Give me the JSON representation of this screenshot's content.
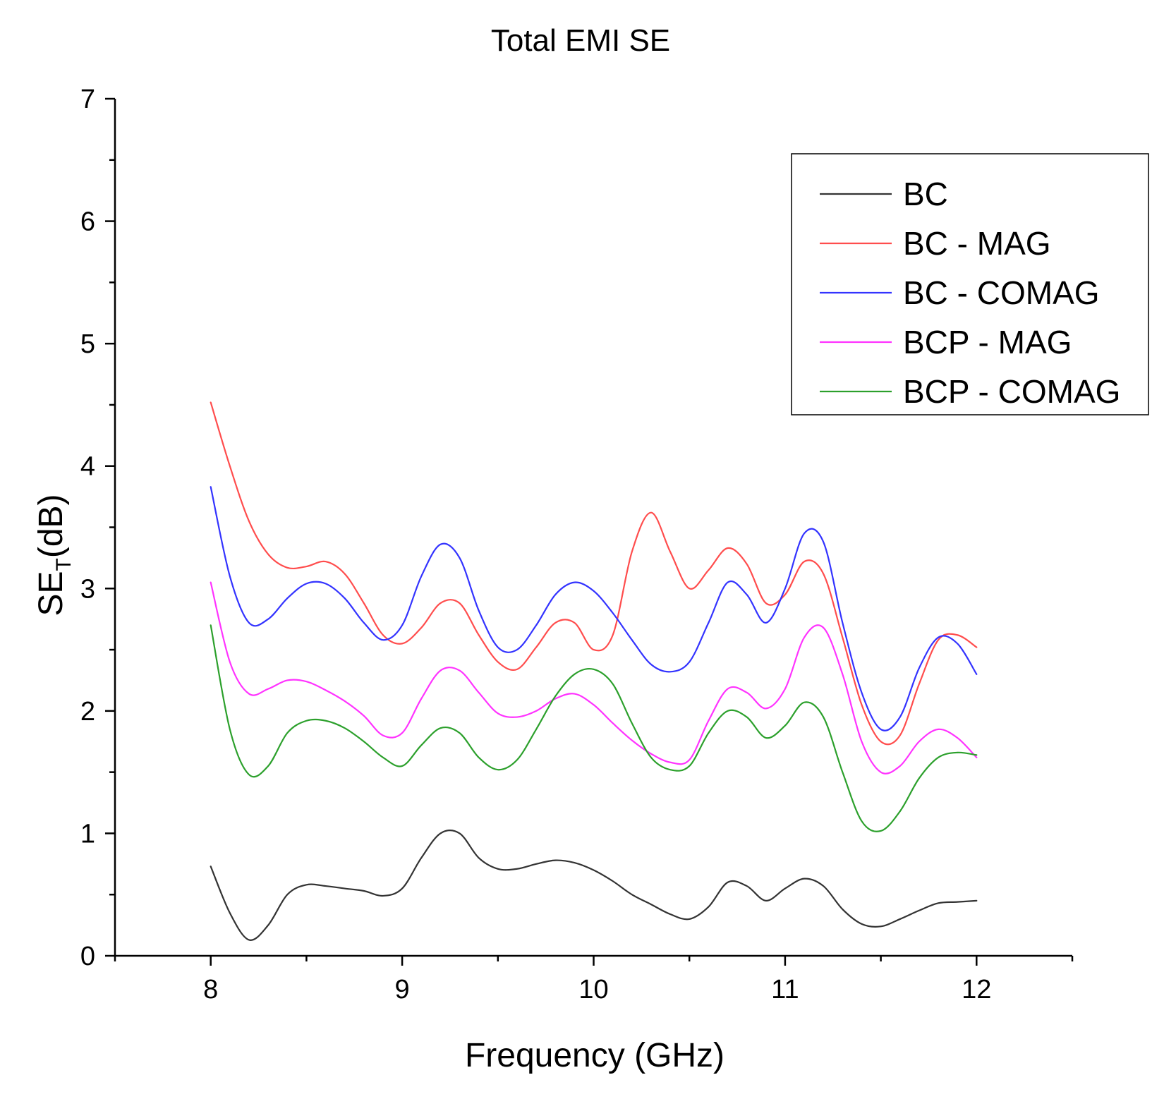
{
  "chart_data": {
    "type": "line",
    "title": "Total EMI SE",
    "xlabel": "Frequency (GHz)",
    "ylabel_main": "SE",
    "ylabel_sub": "T",
    "ylabel_rest": "(dB)",
    "xlim": [
      7.5,
      12.5
    ],
    "ylim": [
      0,
      7
    ],
    "xticks": [
      8,
      9,
      10,
      11,
      12
    ],
    "xtick_labels": [
      "8",
      "9",
      "10",
      "11",
      "12"
    ],
    "yticks": [
      0,
      1,
      2,
      3,
      4,
      5,
      6,
      7
    ],
    "ytick_labels": [
      "0",
      "1",
      "2",
      "3",
      "4",
      "5",
      "6",
      "7"
    ],
    "grid": false,
    "legend_position": "top-right",
    "x": [
      8.0,
      8.1,
      8.2,
      8.3,
      8.4,
      8.5,
      8.6,
      8.7,
      8.8,
      8.9,
      9.0,
      9.1,
      9.2,
      9.3,
      9.4,
      9.5,
      9.6,
      9.7,
      9.8,
      9.9,
      10.0,
      10.1,
      10.2,
      10.3,
      10.4,
      10.5,
      10.6,
      10.7,
      10.8,
      10.9,
      11.0,
      11.1,
      11.2,
      11.3,
      11.4,
      11.5,
      11.6,
      11.7,
      11.8,
      11.9,
      12.0
    ],
    "series": [
      {
        "name": "BC",
        "color": "#333333",
        "values": [
          0.73,
          0.35,
          0.13,
          0.25,
          0.5,
          0.58,
          0.57,
          0.55,
          0.53,
          0.49,
          0.55,
          0.8,
          1.0,
          1.0,
          0.8,
          0.71,
          0.71,
          0.75,
          0.78,
          0.76,
          0.7,
          0.61,
          0.5,
          0.42,
          0.34,
          0.3,
          0.4,
          0.6,
          0.57,
          0.45,
          0.55,
          0.63,
          0.57,
          0.38,
          0.26,
          0.24,
          0.3,
          0.37,
          0.43,
          0.44,
          0.45
        ]
      },
      {
        "name": "BC - MAG",
        "color": "#ff4d4d",
        "values": [
          4.52,
          4.0,
          3.55,
          3.28,
          3.17,
          3.18,
          3.22,
          3.12,
          2.88,
          2.62,
          2.55,
          2.68,
          2.88,
          2.88,
          2.62,
          2.4,
          2.34,
          2.52,
          2.72,
          2.72,
          2.5,
          2.62,
          3.3,
          3.62,
          3.3,
          3.0,
          3.15,
          3.33,
          3.2,
          2.88,
          2.95,
          3.22,
          3.12,
          2.6,
          2.05,
          1.75,
          1.8,
          2.22,
          2.58,
          2.62,
          2.52
        ]
      },
      {
        "name": "BC - COMAG",
        "color": "#3333ff",
        "values": [
          3.83,
          3.1,
          2.72,
          2.75,
          2.92,
          3.04,
          3.04,
          2.92,
          2.72,
          2.58,
          2.7,
          3.1,
          3.36,
          3.25,
          2.82,
          2.52,
          2.5,
          2.7,
          2.95,
          3.05,
          2.98,
          2.8,
          2.58,
          2.38,
          2.32,
          2.4,
          2.72,
          3.05,
          2.95,
          2.72,
          3.0,
          3.45,
          3.38,
          2.72,
          2.15,
          1.85,
          1.95,
          2.35,
          2.6,
          2.55,
          2.3
        ]
      },
      {
        "name": "BCP - MAG",
        "color": "#ff33ff",
        "values": [
          3.05,
          2.4,
          2.14,
          2.18,
          2.25,
          2.24,
          2.17,
          2.08,
          1.96,
          1.8,
          1.82,
          2.1,
          2.33,
          2.33,
          2.15,
          1.98,
          1.95,
          2.0,
          2.1,
          2.14,
          2.05,
          1.9,
          1.76,
          1.65,
          1.58,
          1.6,
          1.92,
          2.18,
          2.15,
          2.02,
          2.18,
          2.6,
          2.68,
          2.3,
          1.75,
          1.5,
          1.55,
          1.75,
          1.85,
          1.78,
          1.62
        ]
      },
      {
        "name": "BCP - COMAG",
        "color": "#2ca02c",
        "values": [
          2.7,
          1.85,
          1.48,
          1.55,
          1.82,
          1.92,
          1.92,
          1.86,
          1.75,
          1.62,
          1.55,
          1.72,
          1.86,
          1.82,
          1.62,
          1.52,
          1.6,
          1.85,
          2.12,
          2.3,
          2.34,
          2.22,
          1.9,
          1.62,
          1.52,
          1.55,
          1.82,
          2.0,
          1.95,
          1.78,
          1.88,
          2.07,
          1.95,
          1.5,
          1.1,
          1.02,
          1.18,
          1.45,
          1.62,
          1.66,
          1.64
        ]
      }
    ]
  }
}
